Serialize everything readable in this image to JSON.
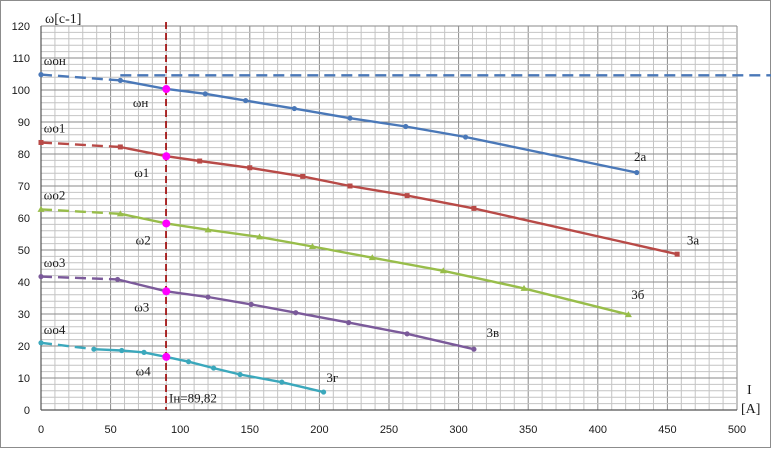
{
  "chart_data": {
    "type": "line",
    "ylabel": "ω[c-1]",
    "xlabel": "I",
    "xunit": "[A]",
    "xlim": [
      0,
      500
    ],
    "ylim": [
      0,
      120
    ],
    "xticks": [
      0,
      50,
      100,
      150,
      200,
      250,
      300,
      350,
      400,
      450,
      500
    ],
    "yticks": [
      0,
      10,
      20,
      30,
      40,
      50,
      60,
      70,
      80,
      90,
      100,
      110,
      120
    ],
    "grid": true,
    "vline": {
      "x": 89.82,
      "label": "Iн=89,82",
      "color": "#a31515"
    },
    "colors": {
      "s2a": "#4a78b8",
      "s3a": "#b84a47",
      "s3b": "#98bd4a",
      "s3v": "#7b5a9a",
      "s3g": "#3ba8bc",
      "marker": "#ff00ff"
    },
    "series": [
      {
        "name": "2а",
        "color": "#4a78b8",
        "marker": "circle",
        "dashed": [
          [
            0,
            104.8
          ],
          [
            57,
            103
          ]
        ],
        "solid": [
          [
            57,
            103
          ],
          [
            90,
            100.3
          ],
          [
            118,
            98.8
          ],
          [
            147,
            96.7
          ],
          [
            182,
            94.2
          ],
          [
            222,
            91.2
          ],
          [
            262,
            88.6
          ],
          [
            305,
            85.3
          ],
          [
            428,
            74.2
          ]
        ],
        "dashed_ext": [
          [
            57,
            104.6
          ],
          [
            735,
            104.6
          ]
        ]
      },
      {
        "name": "3а",
        "color": "#b84a47",
        "marker": "square",
        "dashed": [
          [
            0,
            83.6
          ],
          [
            57,
            82.2
          ]
        ],
        "solid": [
          [
            57,
            82.2
          ],
          [
            90,
            79.3
          ],
          [
            114,
            77.8
          ],
          [
            150,
            75.7
          ],
          [
            188,
            73
          ],
          [
            222,
            70
          ],
          [
            263,
            67
          ],
          [
            311,
            63
          ],
          [
            457,
            48.7
          ]
        ]
      },
      {
        "name": "3б",
        "color": "#98bd4a",
        "marker": "triangle",
        "dashed": [
          [
            0,
            62.7
          ],
          [
            57,
            61.3
          ]
        ],
        "solid": [
          [
            57,
            61.3
          ],
          [
            90,
            58.3
          ],
          [
            120,
            56.3
          ],
          [
            157,
            54.1
          ],
          [
            195,
            51.1
          ],
          [
            238,
            47.6
          ],
          [
            289,
            43.5
          ],
          [
            347,
            38
          ],
          [
            422,
            29.8
          ]
        ]
      },
      {
        "name": "3в",
        "color": "#7b5a9a",
        "marker": "circle",
        "dashed": [
          [
            0,
            41.7
          ],
          [
            55,
            40.8
          ]
        ],
        "solid": [
          [
            55,
            40.8
          ],
          [
            90,
            37.1
          ],
          [
            120,
            35.3
          ],
          [
            151,
            33
          ],
          [
            183,
            30.4
          ],
          [
            221,
            27.3
          ],
          [
            263,
            23.8
          ],
          [
            311,
            19
          ]
        ]
      },
      {
        "name": "3г",
        "color": "#3ba8bc",
        "marker": "circle",
        "dashed": [
          [
            0,
            21
          ],
          [
            38,
            19
          ]
        ],
        "solid": [
          [
            38,
            19
          ],
          [
            58,
            18.6
          ],
          [
            74,
            18
          ],
          [
            90,
            16.6
          ],
          [
            106,
            15.1
          ],
          [
            124,
            13.1
          ],
          [
            143,
            11.1
          ],
          [
            173,
            8.7
          ],
          [
            203,
            5.6
          ]
        ]
      }
    ],
    "annotations": [
      {
        "text": "ωон",
        "x": 2,
        "y": 109
      },
      {
        "text": "ωн",
        "x": 66,
        "y": 96
      },
      {
        "text": "ωо1",
        "x": 2,
        "y": 88
      },
      {
        "text": "ω1",
        "x": 67,
        "y": 74
      },
      {
        "text": "ωо2",
        "x": 2,
        "y": 67
      },
      {
        "text": "ω2",
        "x": 68,
        "y": 53
      },
      {
        "text": "ωо3",
        "x": 2,
        "y": 46
      },
      {
        "text": "ω3",
        "x": 67,
        "y": 32
      },
      {
        "text": "ωо4",
        "x": 2,
        "y": 25
      },
      {
        "text": "ω4",
        "x": 68,
        "y": 12
      },
      {
        "text": "2а",
        "x": 426,
        "y": 79
      },
      {
        "text": "3а",
        "x": 464,
        "y": 53
      },
      {
        "text": "3б",
        "x": 424,
        "y": 36
      },
      {
        "text": "3в",
        "x": 320,
        "y": 24
      },
      {
        "text": "3г",
        "x": 205,
        "y": 10
      }
    ]
  }
}
